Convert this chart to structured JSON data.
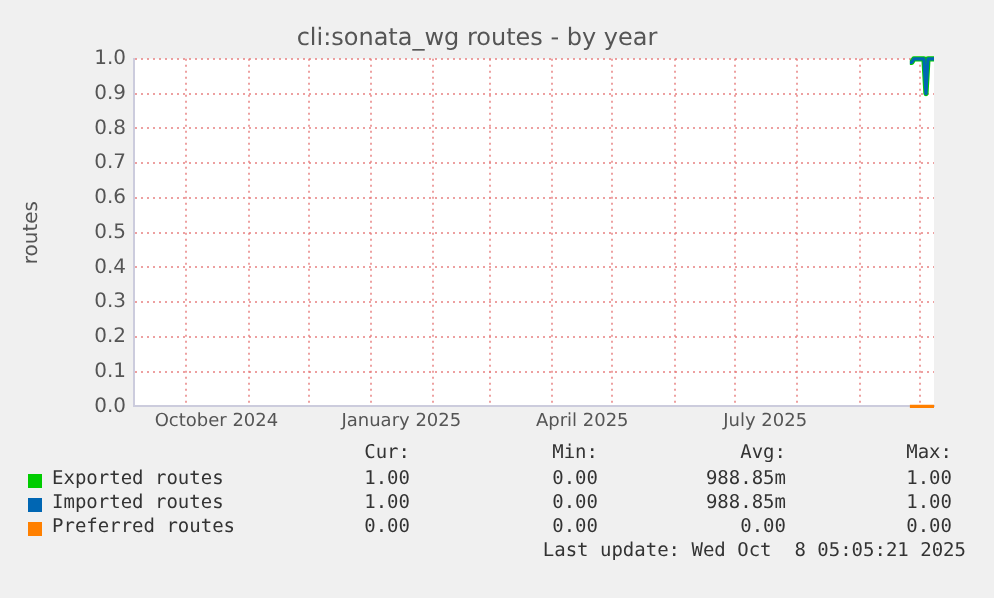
{
  "chart_data": {
    "type": "line",
    "title": "cli:sonata_wg routes - by year",
    "ylabel": "routes",
    "x": [
      "2025-09-26",
      "2025-09-27",
      "2025-09-28",
      "2025-10-03",
      "2025-10-04",
      "2025-10-05",
      "2025-10-08"
    ],
    "series": [
      {
        "name": "Exported routes",
        "color": "#00cc00",
        "values": [
          0.99,
          0.99,
          1.0,
          1.0,
          0.9,
          1.0,
          1.0
        ]
      },
      {
        "name": "Imported routes",
        "color": "#0066b3",
        "values": [
          0.99,
          0.99,
          1.0,
          1.0,
          0.9,
          1.0,
          1.0
        ]
      },
      {
        "name": "Preferred routes",
        "color": "#ff8000",
        "values": [
          0,
          0,
          0,
          0,
          0,
          0,
          0
        ]
      }
    ],
    "xlim": [
      "2024-09-05",
      "2025-10-08"
    ],
    "xticks": [
      {
        "value": "2024-10-01",
        "label": null
      },
      {
        "value": "2024-10-16",
        "label": "October 2024"
      },
      {
        "value": "2024-11-01",
        "label": null
      },
      {
        "value": "2024-12-01",
        "label": null
      },
      {
        "value": "2025-01-01",
        "label": null
      },
      {
        "value": "2025-01-16",
        "label": "January 2025"
      },
      {
        "value": "2025-02-01",
        "label": null
      },
      {
        "value": "2025-03-01",
        "label": null
      },
      {
        "value": "2025-04-01",
        "label": null
      },
      {
        "value": "2025-04-16",
        "label": "April 2025"
      },
      {
        "value": "2025-05-01",
        "label": null
      },
      {
        "value": "2025-06-01",
        "label": null
      },
      {
        "value": "2025-07-01",
        "label": null
      },
      {
        "value": "2025-07-16",
        "label": "July 2025"
      },
      {
        "value": "2025-08-01",
        "label": null
      },
      {
        "value": "2025-09-01",
        "label": null
      },
      {
        "value": "2025-10-01",
        "label": null
      }
    ],
    "ylim": [
      0,
      1
    ],
    "yticks": [
      {
        "value": 0,
        "label": "0.0"
      },
      0.1,
      0.2,
      0.3,
      0.4,
      0.5,
      0.6,
      0.7,
      0.8,
      0.9,
      {
        "value": 1,
        "label": "1.0"
      }
    ],
    "grid": true,
    "legend": "bottom",
    "marker": "none",
    "line_style": "solid",
    "annotations": [
      "Cur:",
      "Min:",
      "Avg:",
      "Max:",
      "1.00",
      "0.00",
      "988.85m",
      "1.00",
      "1.00",
      "0.00",
      "988.85m",
      "1.00",
      "0.00",
      "0.00",
      "0.00",
      "0.00",
      "Last update: Wed Oct  8 05:05:21 2025"
    ]
  }
}
